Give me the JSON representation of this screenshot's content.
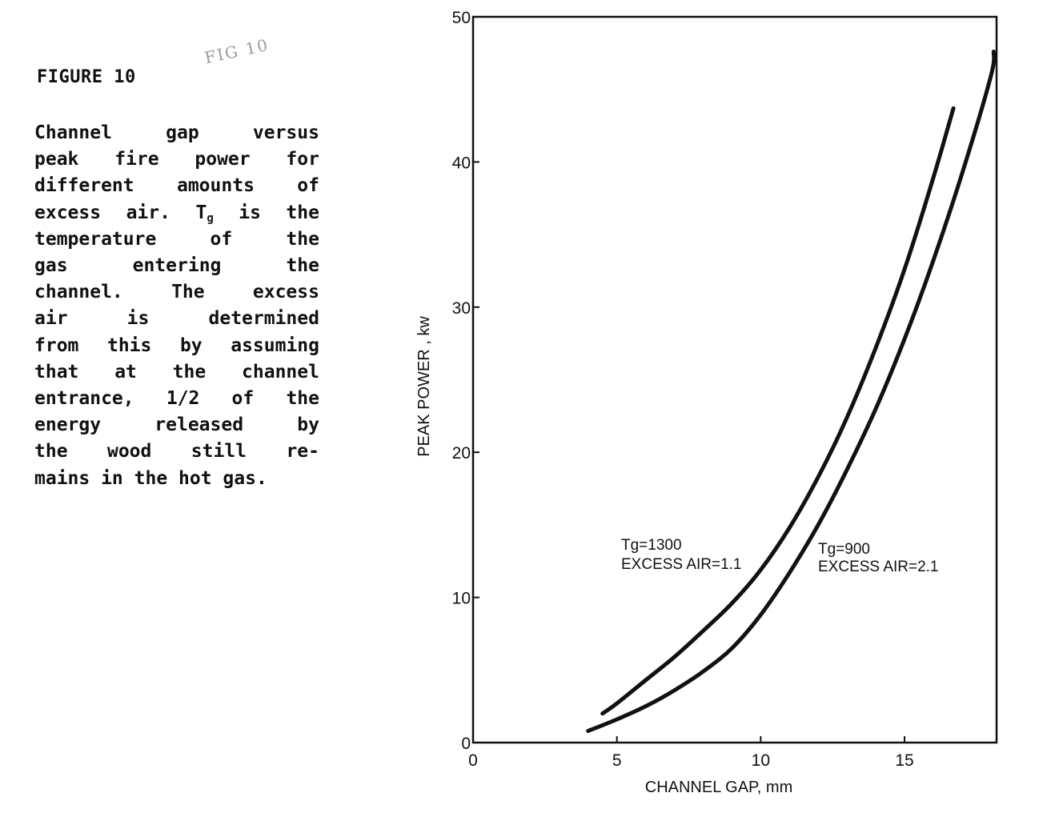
{
  "caption": {
    "figure_label": "FIGURE 10",
    "line_1": [
      "Channel",
      "gap",
      "versus"
    ],
    "line_2": [
      "peak",
      "fire",
      "power",
      "for"
    ],
    "line_3": [
      "different",
      "amounts",
      "of"
    ],
    "line_4_pre": [
      "excess",
      "air."
    ],
    "line_4_var": "T",
    "line_4_sub": "g",
    "line_4_post": [
      "is",
      "the"
    ],
    "line_5": [
      "temperature",
      "of",
      "the"
    ],
    "line_6": [
      "gas",
      "entering",
      "the"
    ],
    "line_7": [
      "channel.",
      "The",
      "excess"
    ],
    "line_8": [
      "air",
      "is",
      "determined"
    ],
    "line_9": [
      "from",
      "this",
      "by",
      "assuming"
    ],
    "line_10": [
      "that",
      "at",
      "the",
      "channel"
    ],
    "line_11": [
      "entrance,",
      "1/2",
      "of",
      "the"
    ],
    "line_12": [
      "energy",
      "released",
      "by"
    ],
    "line_13": [
      "the",
      "wood",
      "still",
      "re-"
    ],
    "line_14": "mains in the hot gas."
  },
  "stamp_text": "FIG 10",
  "chart_data": {
    "type": "line",
    "xlabel": "CHANNEL GAP, mm",
    "ylabel": "PEAK POWER , kw",
    "xlim": [
      0,
      18.2
    ],
    "ylim": [
      0,
      50
    ],
    "x_ticks": [
      0,
      5,
      10,
      15
    ],
    "y_ticks": [
      0,
      10,
      20,
      30,
      40,
      50
    ],
    "grid": false,
    "legend": "none",
    "series": [
      {
        "name": "Tg=1300 EXCESS AIR=1.1",
        "x": [
          4.5,
          5,
          6,
          7,
          8,
          9,
          10,
          11,
          12,
          13,
          14,
          15,
          16,
          16.7
        ],
        "y": [
          2.0,
          2.7,
          4.3,
          5.9,
          7.7,
          9.6,
          11.9,
          14.8,
          18.3,
          22.4,
          27.2,
          32.6,
          38.9,
          43.7
        ]
      },
      {
        "name": "Tg=900 EXCESS AIR=2.1",
        "x": [
          4.0,
          5,
          6,
          7,
          8,
          9,
          10,
          11,
          12,
          13,
          14,
          15,
          16,
          17,
          18,
          18.1
        ],
        "y": [
          0.8,
          1.6,
          2.5,
          3.6,
          4.9,
          6.5,
          8.8,
          11.7,
          15.0,
          18.8,
          23.0,
          27.8,
          33.2,
          39.2,
          45.9,
          47.6
        ]
      }
    ],
    "annotations": [
      {
        "line1": "Tg=1300",
        "line2": "EXCESS AIR=1.1"
      },
      {
        "line1": "Tg=900",
        "line2": "EXCESS AIR=2.1"
      }
    ]
  }
}
